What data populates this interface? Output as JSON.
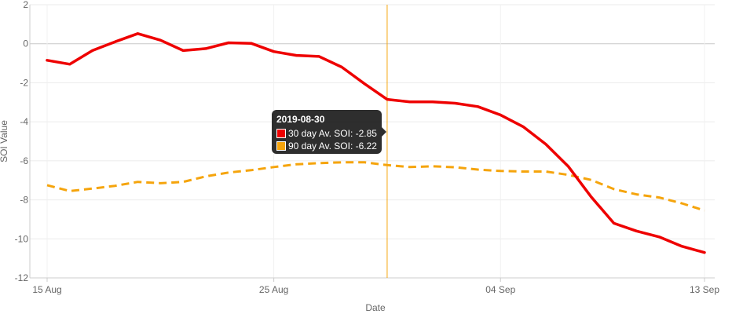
{
  "chart_data": {
    "type": "line",
    "xlabel": "Date",
    "ylabel": "SOI Value",
    "ylim": [
      -12,
      2
    ],
    "y_ticks": [
      "2",
      "0",
      "-2",
      "-4",
      "-6",
      "-8",
      "-10",
      "-12"
    ],
    "y_tick_values": [
      2,
      0,
      -2,
      -4,
      -6,
      -8,
      -10,
      -12
    ],
    "x_tick_labels": [
      "15 Aug",
      "25 Aug",
      "04 Sep",
      "13 Sep"
    ],
    "x_tick_dates": [
      "2019-08-15",
      "2019-08-25",
      "2019-09-04",
      "2019-09-13"
    ],
    "x_range": [
      "2019-08-15",
      "2019-09-13"
    ],
    "x": [
      "2019-08-15",
      "2019-08-16",
      "2019-08-17",
      "2019-08-18",
      "2019-08-19",
      "2019-08-20",
      "2019-08-21",
      "2019-08-22",
      "2019-08-23",
      "2019-08-24",
      "2019-08-25",
      "2019-08-26",
      "2019-08-27",
      "2019-08-28",
      "2019-08-29",
      "2019-08-30",
      "2019-08-31",
      "2019-09-01",
      "2019-09-02",
      "2019-09-03",
      "2019-09-04",
      "2019-09-05",
      "2019-09-06",
      "2019-09-07",
      "2019-09-08",
      "2019-09-09",
      "2019-09-10",
      "2019-09-11",
      "2019-09-12",
      "2019-09-13"
    ],
    "series": [
      {
        "name": "30 day Av. SOI",
        "color": "#ee0000",
        "dash": "solid",
        "values": [
          -0.85,
          -1.05,
          -0.35,
          0.1,
          0.52,
          0.18,
          -0.35,
          -0.25,
          0.05,
          0.02,
          -0.4,
          -0.6,
          -0.65,
          -1.2,
          -2.05,
          -2.85,
          -2.98,
          -2.98,
          -3.05,
          -3.22,
          -3.65,
          -4.25,
          -5.15,
          -6.3,
          -7.85,
          -9.2,
          -9.6,
          -9.9,
          -10.38,
          -10.7
        ]
      },
      {
        "name": "90 day Av. SOI",
        "color": "#f5a40c",
        "dash": "dashed",
        "values": [
          -7.25,
          -7.55,
          -7.42,
          -7.28,
          -7.08,
          -7.15,
          -7.08,
          -6.8,
          -6.6,
          -6.48,
          -6.32,
          -6.18,
          -6.12,
          -6.08,
          -6.08,
          -6.22,
          -6.32,
          -6.28,
          -6.33,
          -6.45,
          -6.52,
          -6.55,
          -6.55,
          -6.72,
          -6.98,
          -7.45,
          -7.72,
          -7.88,
          -8.18,
          -8.55
        ]
      }
    ],
    "grid": true,
    "crosshair_date": "2019-08-30",
    "tooltip": {
      "title": "2019-08-30",
      "rows": [
        {
          "text": "30 day Av. SOI: -2.85",
          "color": "#ee0000"
        },
        {
          "text": "90 day Av. SOI: -6.22",
          "color": "#f5a40c"
        }
      ]
    }
  }
}
